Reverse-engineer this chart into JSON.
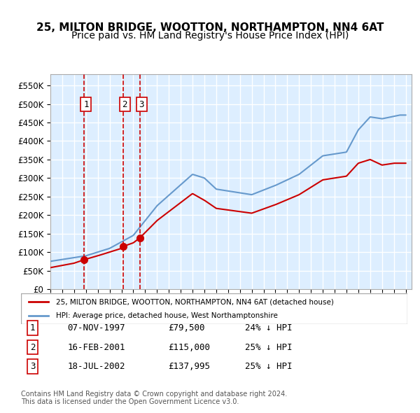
{
  "title": "25, MILTON BRIDGE, WOOTTON, NORTHAMPTON, NN4 6AT",
  "subtitle": "Price paid vs. HM Land Registry's House Price Index (HPI)",
  "ylabel": "",
  "xlim_start": 1995.0,
  "xlim_end": 2025.5,
  "ylim_min": 0,
  "ylim_max": 580000,
  "yticks": [
    0,
    50000,
    100000,
    150000,
    200000,
    250000,
    300000,
    350000,
    400000,
    450000,
    500000,
    550000
  ],
  "ytick_labels": [
    "£0",
    "£50K",
    "£100K",
    "£150K",
    "£200K",
    "£250K",
    "£300K",
    "£350K",
    "£400K",
    "£450K",
    "£500K",
    "£550K"
  ],
  "xticks": [
    1995,
    1996,
    1997,
    1998,
    1999,
    2000,
    2001,
    2002,
    2003,
    2004,
    2005,
    2006,
    2007,
    2008,
    2009,
    2010,
    2011,
    2012,
    2013,
    2014,
    2015,
    2016,
    2017,
    2018,
    2019,
    2020,
    2021,
    2022,
    2023,
    2024,
    2025
  ],
  "sale_dates": [
    1997.854,
    2001.12,
    2002.54
  ],
  "sale_prices": [
    79500,
    115000,
    137995
  ],
  "sale_labels": [
    "1",
    "2",
    "3"
  ],
  "red_line_color": "#cc0000",
  "blue_line_color": "#6699cc",
  "vline_color": "#cc0000",
  "background_color": "#ddeeff",
  "grid_color": "#ffffff",
  "legend_label_red": "25, MILTON BRIDGE, WOOTTON, NORTHAMPTON, NN4 6AT (detached house)",
  "legend_label_blue": "HPI: Average price, detached house, West Northamptonshire",
  "table_data": [
    [
      "1",
      "07-NOV-1997",
      "£79,500",
      "24% ↓ HPI"
    ],
    [
      "2",
      "16-FEB-2001",
      "£115,000",
      "25% ↓ HPI"
    ],
    [
      "3",
      "18-JUL-2002",
      "£137,995",
      "25% ↓ HPI"
    ]
  ],
  "footnote": "Contains HM Land Registry data © Crown copyright and database right 2024.\nThis data is licensed under the Open Government Licence v3.0.",
  "title_fontsize": 11,
  "subtitle_fontsize": 10
}
